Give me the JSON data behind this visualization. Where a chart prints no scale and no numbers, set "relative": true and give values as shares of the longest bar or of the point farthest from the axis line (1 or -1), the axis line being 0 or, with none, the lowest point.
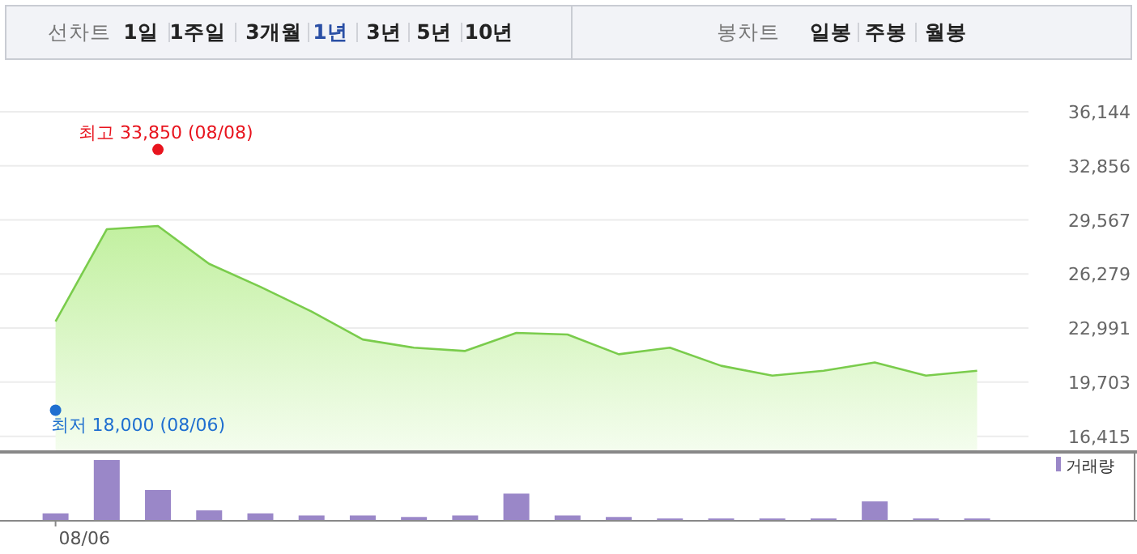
{
  "chart_data": [
    {
      "type": "other",
      "annotations": [
        "선차트",
        "1일",
        "1주일",
        "3개월",
        "1년",
        "3년",
        "5년",
        "10년",
        "봉차트",
        "일봉",
        "주봉",
        "월봉"
      ]
    },
    {
      "type": "area",
      "categories": [
        null,
        null,
        null,
        null,
        null,
        null,
        null,
        null,
        null,
        null,
        null,
        null,
        null,
        null,
        null,
        null,
        null,
        null,
        null
      ],
      "series": [
        {
          "type": "area",
          "color": "#7acc4c",
          "values": [
            23400,
            29000,
            29200,
            26900,
            25500,
            24000,
            22300,
            21800,
            21600,
            22700,
            22600,
            21400,
            21800,
            20700,
            20100,
            20400,
            20900,
            20100,
            20400
          ]
        },
        {
          "type": "scatter",
          "marker": "circle",
          "color": "#e8141e",
          "values": [
            null,
            null,
            33850,
            null,
            null,
            null,
            null,
            null,
            null,
            null,
            null,
            null,
            null,
            null,
            null,
            null,
            null,
            null,
            null
          ]
        },
        {
          "type": "scatter",
          "marker": "circle",
          "color": "#1f6fd0",
          "values": [
            18000,
            null,
            null,
            null,
            null,
            null,
            null,
            null,
            null,
            null,
            null,
            null,
            null,
            null,
            null,
            null,
            null,
            null,
            null
          ]
        }
      ],
      "annotations": [
        "최고 33,850 (08/08)",
        "최저 18,000 (08/06)"
      ],
      "ylim": [
        15560,
        36144
      ],
      "yticks": [
        {
          "value": 16415,
          "label": "16,415"
        },
        {
          "value": 19703,
          "label": "19,703"
        },
        {
          "value": 22991,
          "label": "22,991"
        },
        {
          "value": 26279,
          "label": "26,279"
        },
        {
          "value": 29567,
          "label": "29,567"
        },
        {
          "value": 32856,
          "label": "32,856"
        },
        {
          "value": 36144,
          "label": "36,144"
        }
      ],
      "grid": true,
      "tick_labels": "y"
    },
    {
      "type": "bar",
      "relative": true,
      "annotations": [
        "08/06"
      ],
      "categories": [
        null,
        null,
        null,
        null,
        null,
        null,
        null,
        null,
        null,
        null,
        null,
        null,
        null,
        null,
        null,
        null,
        null,
        null,
        null
      ],
      "series": [
        {
          "name": "거래량",
          "color": "#9a87c8",
          "values": [
            0.11,
            1,
            0.5,
            0.16,
            0.11,
            0.075,
            0.075,
            0.05,
            0.075,
            0.44,
            0.075,
            0.05,
            0.025,
            0.025,
            0.025,
            0.025,
            0.31,
            0.025,
            0.025
          ]
        }
      ],
      "legend": "top right",
      "tick_labels": "x"
    }
  ]
}
